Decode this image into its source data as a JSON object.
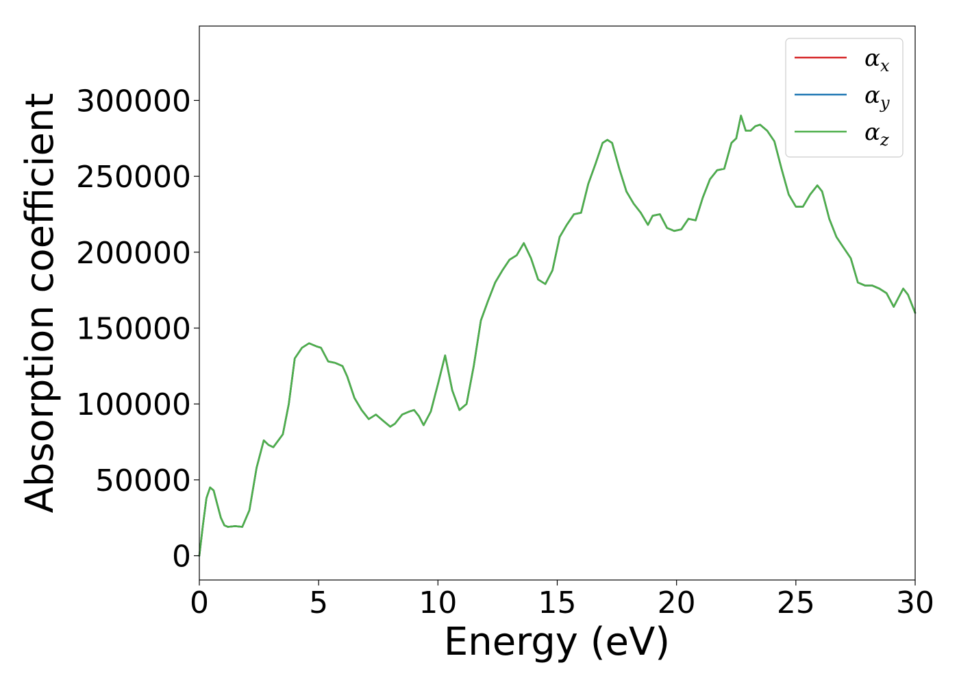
{
  "chart_data": {
    "type": "line",
    "title": "",
    "xlabel": "Energy (eV)",
    "ylabel": "Absorption coefficient",
    "xlim": [
      0,
      30
    ],
    "ylim": [
      -16000,
      349000
    ],
    "xticks": [
      0,
      5,
      10,
      15,
      20,
      25,
      30
    ],
    "xtick_labels": [
      "0",
      "5",
      "10",
      "15",
      "20",
      "25",
      "30"
    ],
    "yticks": [
      0,
      50000,
      100000,
      150000,
      200000,
      250000,
      300000
    ],
    "ytick_labels": [
      "0",
      "50000",
      "100000",
      "150000",
      "200000",
      "250000",
      "300000"
    ],
    "grid": false,
    "legend_position": "top-right",
    "x": [
      0,
      0.15,
      0.3,
      0.45,
      0.6,
      0.75,
      0.9,
      1.05,
      1.2,
      1.5,
      1.8,
      2.1,
      2.4,
      2.7,
      2.9,
      3.1,
      3.5,
      3.75,
      4.0,
      4.3,
      4.6,
      4.9,
      5.1,
      5.4,
      5.7,
      6.0,
      6.2,
      6.5,
      6.8,
      7.1,
      7.4,
      7.7,
      8.0,
      8.2,
      8.5,
      8.8,
      9.0,
      9.2,
      9.4,
      9.7,
      10.0,
      10.3,
      10.6,
      10.9,
      11.2,
      11.5,
      11.8,
      12.1,
      12.4,
      12.7,
      13.0,
      13.3,
      13.6,
      13.9,
      14.2,
      14.5,
      14.8,
      15.1,
      15.4,
      15.7,
      16.0,
      16.3,
      16.6,
      16.9,
      17.1,
      17.3,
      17.6,
      17.9,
      18.2,
      18.5,
      18.8,
      19.0,
      19.3,
      19.6,
      19.9,
      20.2,
      20.5,
      20.8,
      21.1,
      21.4,
      21.7,
      22.0,
      22.3,
      22.5,
      22.7,
      22.9,
      23.1,
      23.3,
      23.5,
      23.8,
      24.1,
      24.4,
      24.7,
      25.0,
      25.3,
      25.6,
      25.9,
      26.1,
      26.4,
      26.7,
      27.0,
      27.3,
      27.6,
      27.9,
      28.2,
      28.5,
      28.8,
      29.1,
      29.3,
      29.5,
      29.7,
      30.0
    ],
    "series": [
      {
        "name": "α_x",
        "color": "#d62728",
        "values": [
          0,
          20000,
          38000,
          45000,
          43000,
          34000,
          25000,
          20000,
          19000,
          19500,
          19000,
          30000,
          58000,
          76000,
          73000,
          71500,
          80000,
          100000,
          130000,
          137000,
          140000,
          138000,
          137000,
          128000,
          127000,
          125000,
          118000,
          104000,
          96000,
          90000,
          93000,
          89000,
          85000,
          87000,
          93000,
          95000,
          96000,
          92000,
          86000,
          95000,
          113000,
          132000,
          109000,
          96000,
          100000,
          125000,
          155000,
          168000,
          180000,
          188000,
          195000,
          198000,
          206000,
          196000,
          182000,
          179000,
          188000,
          210000,
          218000,
          225000,
          226000,
          245000,
          258000,
          272000,
          274000,
          272000,
          255000,
          240000,
          232000,
          226000,
          218000,
          224000,
          225000,
          216000,
          214000,
          215000,
          222000,
          221000,
          236000,
          248000,
          254000,
          255000,
          272000,
          275000,
          290000,
          280000,
          280000,
          283000,
          284000,
          280000,
          273000,
          255000,
          238000,
          230000,
          230000,
          238000,
          244000,
          240000,
          222000,
          210000,
          203000,
          196000,
          180000,
          178000,
          178000,
          176000,
          173000,
          164000,
          170000,
          176000,
          172000,
          160000
        ]
      },
      {
        "name": "α_y",
        "color": "#1f77b4",
        "values": [
          0,
          20000,
          38000,
          45000,
          43000,
          34000,
          25000,
          20000,
          19000,
          19500,
          19000,
          30000,
          58000,
          76000,
          73000,
          71500,
          80000,
          100000,
          130000,
          137000,
          140000,
          138000,
          137000,
          128000,
          127000,
          125000,
          118000,
          104000,
          96000,
          90000,
          93000,
          89000,
          85000,
          87000,
          93000,
          95000,
          96000,
          92000,
          86000,
          95000,
          113000,
          132000,
          109000,
          96000,
          100000,
          125000,
          155000,
          168000,
          180000,
          188000,
          195000,
          198000,
          206000,
          196000,
          182000,
          179000,
          188000,
          210000,
          218000,
          225000,
          226000,
          245000,
          258000,
          272000,
          274000,
          272000,
          255000,
          240000,
          232000,
          226000,
          218000,
          224000,
          225000,
          216000,
          214000,
          215000,
          222000,
          221000,
          236000,
          248000,
          254000,
          255000,
          272000,
          275000,
          290000,
          280000,
          280000,
          283000,
          284000,
          280000,
          273000,
          255000,
          238000,
          230000,
          230000,
          238000,
          244000,
          240000,
          222000,
          210000,
          203000,
          196000,
          180000,
          178000,
          178000,
          176000,
          173000,
          164000,
          170000,
          176000,
          172000,
          160000
        ]
      },
      {
        "name": "α_z",
        "color": "#4daf4a",
        "values": [
          0,
          20000,
          38000,
          45000,
          43000,
          34000,
          25000,
          20000,
          19000,
          19500,
          19000,
          30000,
          58000,
          76000,
          73000,
          71500,
          80000,
          100000,
          130000,
          137000,
          140000,
          138000,
          137000,
          128000,
          127000,
          125000,
          118000,
          104000,
          96000,
          90000,
          93000,
          89000,
          85000,
          87000,
          93000,
          95000,
          96000,
          92000,
          86000,
          95000,
          113000,
          132000,
          109000,
          96000,
          100000,
          125000,
          155000,
          168000,
          180000,
          188000,
          195000,
          198000,
          206000,
          196000,
          182000,
          179000,
          188000,
          210000,
          218000,
          225000,
          226000,
          245000,
          258000,
          272000,
          274000,
          272000,
          255000,
          240000,
          232000,
          226000,
          218000,
          224000,
          225000,
          216000,
          214000,
          215000,
          222000,
          221000,
          236000,
          248000,
          254000,
          255000,
          272000,
          275000,
          290000,
          280000,
          280000,
          283000,
          284000,
          280000,
          273000,
          255000,
          238000,
          230000,
          230000,
          238000,
          244000,
          240000,
          222000,
          210000,
          203000,
          196000,
          180000,
          178000,
          178000,
          176000,
          173000,
          164000,
          170000,
          176000,
          172000,
          160000
        ]
      }
    ],
    "legend": [
      {
        "symbol": "α",
        "sub": "x",
        "color": "#d62728"
      },
      {
        "symbol": "α",
        "sub": "y",
        "color": "#1f77b4"
      },
      {
        "symbol": "α",
        "sub": "z",
        "color": "#4daf4a"
      }
    ]
  }
}
